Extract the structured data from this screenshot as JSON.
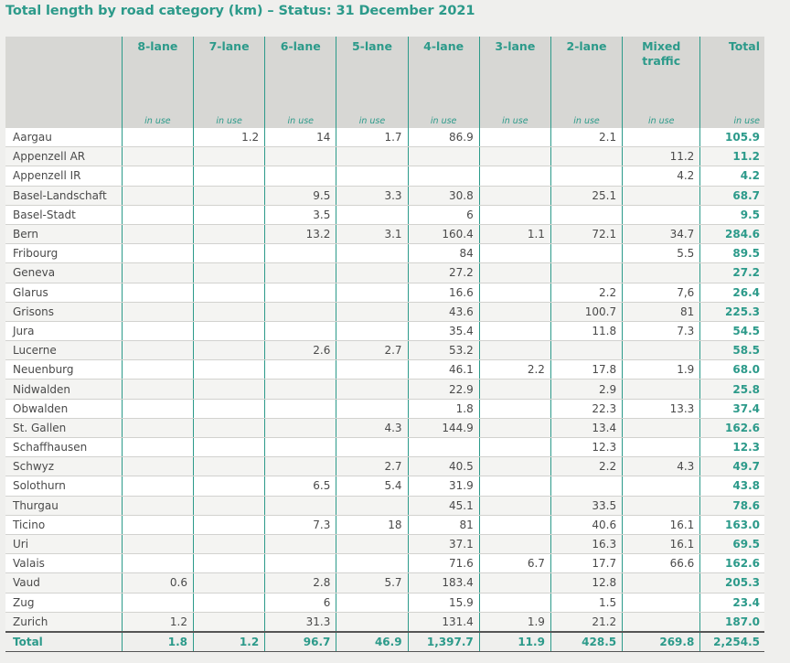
{
  "title": "Total length by road category (km) – Status: 31 December 2021",
  "columns": [
    "8-lane",
    "7-lane",
    "6-lane",
    "5-lane",
    "4-lane",
    "3-lane",
    "2-lane",
    "Mixed traffic",
    "Total"
  ],
  "sub_label": "in use",
  "rows": [
    {
      "name": "Aargau",
      "values": [
        "",
        "1.2",
        "14",
        "1.7",
        "86.9",
        "",
        "2.1",
        "",
        "105.9"
      ]
    },
    {
      "name": "Appenzell AR",
      "values": [
        "",
        "",
        "",
        "",
        "",
        "",
        "",
        "11.2",
        "11.2"
      ]
    },
    {
      "name": "Appenzell IR",
      "values": [
        "",
        "",
        "",
        "",
        "",
        "",
        "",
        "4.2",
        "4.2"
      ]
    },
    {
      "name": "Basel-Landschaft",
      "values": [
        "",
        "",
        "9.5",
        "3.3",
        "30.8",
        "",
        "25.1",
        "",
        "68.7"
      ]
    },
    {
      "name": "Basel-Stadt",
      "values": [
        "",
        "",
        "3.5",
        "",
        "6",
        "",
        "",
        "",
        "9.5"
      ]
    },
    {
      "name": "Bern",
      "values": [
        "",
        "",
        "13.2",
        "3.1",
        "160.4",
        "1.1",
        "72.1",
        "34.7",
        "284.6"
      ]
    },
    {
      "name": "Fribourg",
      "values": [
        "",
        "",
        "",
        "",
        "84",
        "",
        "",
        "5.5",
        "89.5"
      ]
    },
    {
      "name": "Geneva",
      "values": [
        "",
        "",
        "",
        "",
        "27.2",
        "",
        "",
        "",
        "27.2"
      ]
    },
    {
      "name": "Glarus",
      "values": [
        "",
        "",
        "",
        "",
        "16.6",
        "",
        "2.2",
        "7,6",
        "26.4"
      ]
    },
    {
      "name": "Grisons",
      "values": [
        "",
        "",
        "",
        "",
        "43.6",
        "",
        "100.7",
        "81",
        "225.3"
      ]
    },
    {
      "name": "Jura",
      "values": [
        "",
        "",
        "",
        "",
        "35.4",
        "",
        "11.8",
        "7.3",
        "54.5"
      ]
    },
    {
      "name": "Lucerne",
      "values": [
        "",
        "",
        "2.6",
        "2.7",
        "53.2",
        "",
        "",
        "",
        "58.5"
      ]
    },
    {
      "name": "Neuenburg",
      "values": [
        "",
        "",
        "",
        "",
        "46.1",
        "2.2",
        "17.8",
        "1.9",
        "68.0"
      ]
    },
    {
      "name": "Nidwalden",
      "values": [
        "",
        "",
        "",
        "",
        "22.9",
        "",
        "2.9",
        "",
        "25.8"
      ]
    },
    {
      "name": "Obwalden",
      "values": [
        "",
        "",
        "",
        "",
        "1.8",
        "",
        "22.3",
        "13.3",
        "37.4"
      ]
    },
    {
      "name": "St. Gallen",
      "values": [
        "",
        "",
        "",
        "4.3",
        "144.9",
        "",
        "13.4",
        "",
        "162.6"
      ]
    },
    {
      "name": "Schaffhausen",
      "values": [
        "",
        "",
        "",
        "",
        "",
        "",
        "12.3",
        "",
        "12.3"
      ]
    },
    {
      "name": "Schwyz",
      "values": [
        "",
        "",
        "",
        "2.7",
        "40.5",
        "",
        "2.2",
        "4.3",
        "49.7"
      ]
    },
    {
      "name": "Solothurn",
      "values": [
        "",
        "",
        "6.5",
        "5.4",
        "31.9",
        "",
        "",
        "",
        "43.8"
      ]
    },
    {
      "name": "Thurgau",
      "values": [
        "",
        "",
        "",
        "",
        "45.1",
        "",
        "33.5",
        "",
        "78.6"
      ]
    },
    {
      "name": "Ticino",
      "values": [
        "",
        "",
        "7.3",
        "18",
        "81",
        "",
        "40.6",
        "16.1",
        "163.0"
      ]
    },
    {
      "name": "Uri",
      "values": [
        "",
        "",
        "",
        "",
        "37.1",
        "",
        "16.3",
        "16.1",
        "69.5"
      ]
    },
    {
      "name": "Valais",
      "values": [
        "",
        "",
        "",
        "",
        "71.6",
        "6.7",
        "17.7",
        "66.6",
        "162.6"
      ]
    },
    {
      "name": "Vaud",
      "values": [
        "0.6",
        "",
        "2.8",
        "5.7",
        "183.4",
        "",
        "12.8",
        "",
        "205.3"
      ]
    },
    {
      "name": "Zug",
      "values": [
        "",
        "",
        "6",
        "",
        "15.9",
        "",
        "1.5",
        "",
        "23.4"
      ]
    },
    {
      "name": "Zurich",
      "values": [
        "1.2",
        "",
        "31.3",
        "",
        "131.4",
        "1.9",
        "21.2",
        "",
        "187.0"
      ]
    }
  ],
  "total": {
    "name": "Total",
    "values": [
      "1.8",
      "1.2",
      "96.7",
      "46.9",
      "1,397.7",
      "11.9",
      "428.5",
      "269.8",
      "2,254.5"
    ]
  },
  "colors": {
    "accent": "#2c9a8a",
    "header_bg": "#d7d7d4",
    "page_bg": "#efefed"
  }
}
